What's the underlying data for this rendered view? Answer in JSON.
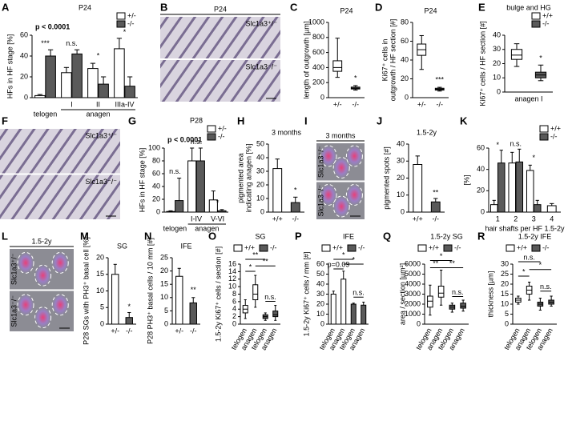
{
  "chart_data": [
    {
      "type": "bar",
      "label": "A",
      "title": "P24",
      "annotation": "p < 0.0001",
      "ylabel": [
        "HFs in HF stage [%]"
      ],
      "categories": [
        null,
        "I",
        "II",
        "IIIa-IV"
      ],
      "groups": [
        "telogen",
        "anagen"
      ],
      "series": [
        {
          "name": "+/-",
          "color": "#ffffff",
          "values": [
            2,
            24,
            28,
            47
          ],
          "errors": [
            1,
            5,
            5,
            10
          ]
        },
        {
          "name": "-/-",
          "color": "#5a5a5a",
          "values": [
            40,
            42,
            13,
            11
          ],
          "errors": [
            6,
            4,
            7,
            9
          ]
        }
      ],
      "ylim": [
        0,
        60
      ],
      "yticks": [
        0,
        20,
        40,
        60
      ],
      "legend": "top right",
      "significance": [
        "***",
        "n.s.",
        "*",
        "*"
      ]
    },
    {
      "type": "box",
      "label": "C",
      "title": "P24",
      "ylabel": [
        "length of outgrowth [µm]"
      ],
      "categories": [
        "+/-",
        "-/-"
      ],
      "series": [
        {
          "color": "#ffffff",
          "boxes": [
            {
              "min": 270,
              "q1": 350,
              "median": 400,
              "q3": 490,
              "max": 790
            },
            null
          ]
        },
        {
          "color": "#5a5a5a",
          "boxes": [
            null,
            {
              "min": 100,
              "q1": 115,
              "median": 125,
              "q3": 140,
              "max": 160
            }
          ]
        }
      ],
      "ylim": [
        0,
        1000
      ],
      "yticks": [
        0,
        200,
        400,
        600,
        800,
        1000
      ],
      "significance": [
        "*"
      ]
    },
    {
      "type": "box",
      "label": "D",
      "title": "P24",
      "ylabel": [
        "Ki67⁺ cells in",
        "outgrowth / HF section [#]"
      ],
      "categories": [
        "+/-",
        "-/-"
      ],
      "series": [
        {
          "color": "#ffffff",
          "boxes": [
            {
              "min": 30,
              "q1": 45,
              "median": 51,
              "q3": 57,
              "max": 66
            },
            null
          ]
        },
        {
          "color": "#5a5a5a",
          "boxes": [
            null,
            {
              "min": 7,
              "q1": 8,
              "median": 9,
              "q3": 10,
              "max": 11
            }
          ]
        }
      ],
      "ylim": [
        0,
        80
      ],
      "yticks": [
        0,
        20,
        40,
        60,
        80
      ],
      "significance": [
        "***"
      ]
    },
    {
      "type": "box",
      "label": "E",
      "title": "bulge and HG",
      "ylabel": [
        "Ki67⁺ cells / HF section [#]"
      ],
      "xlabel": "anagen I",
      "categories": [
        null,
        null
      ],
      "series": [
        {
          "name": "+/+",
          "color": "#ffffff",
          "boxes": [
            {
              "min": 18,
              "q1": 23,
              "median": 26,
              "q3": 30,
              "max": 34
            },
            null
          ]
        },
        {
          "name": "-/-",
          "color": "#5a5a5a",
          "boxes": [
            null,
            {
              "min": 8,
              "q1": 10,
              "median": 12,
              "q3": 14,
              "max": 19
            }
          ]
        }
      ],
      "ylim": [
        0,
        40
      ],
      "yticks": [
        0,
        10,
        20,
        30,
        40
      ],
      "legend": "top right",
      "significance": [
        "*"
      ]
    },
    {
      "type": "bar",
      "label": "G",
      "title": "P28",
      "annotation": "p < 0.0001",
      "ylabel": [
        "HFs in HF stage [%]"
      ],
      "categories": [
        null,
        "I-IV",
        "V-VI"
      ],
      "groups": [
        "telogen",
        "anagen"
      ],
      "series": [
        {
          "name": "+/-",
          "color": "#ffffff",
          "values": [
            1,
            80,
            19
          ],
          "errors": [
            1,
            20,
            14
          ]
        },
        {
          "name": "-/-",
          "color": "#5a5a5a",
          "values": [
            18,
            80,
            2
          ],
          "errors": [
            35,
            20,
            2
          ]
        }
      ],
      "ylim": [
        0,
        100
      ],
      "yticks": [
        0,
        20,
        40,
        60,
        80,
        100
      ],
      "legend": "top right",
      "significance": [
        "n.s.",
        "n.s.",
        "*"
      ]
    },
    {
      "type": "bar",
      "label": "H",
      "title": "3 months",
      "ylabel": [
        "pigmented area",
        "indicating anagen [%]"
      ],
      "categories": [
        "+/+",
        "-/-"
      ],
      "series": [
        {
          "color": "#ffffff",
          "values": [
            32,
            null
          ],
          "errors": [
            7,
            null
          ]
        },
        {
          "color": "#5a5a5a",
          "values": [
            null,
            7
          ],
          "errors": [
            null,
            4
          ]
        }
      ],
      "ylim": [
        0,
        50
      ],
      "yticks": [
        0,
        10,
        20,
        30,
        40,
        50
      ],
      "significance": [
        "*"
      ]
    },
    {
      "type": "bar",
      "label": "J",
      "title": "1.5-2y",
      "ylabel": [
        "pigmented spots [#]"
      ],
      "categories": [
        "+/+",
        "-/-"
      ],
      "series": [
        {
          "color": "#ffffff",
          "values": [
            28,
            null
          ],
          "errors": [
            5,
            null
          ]
        },
        {
          "color": "#5a5a5a",
          "values": [
            null,
            6
          ],
          "errors": [
            null,
            2
          ]
        }
      ],
      "ylim": [
        0,
        40
      ],
      "yticks": [
        0,
        10,
        20,
        30,
        40
      ],
      "significance": [
        "**"
      ]
    },
    {
      "type": "bar",
      "label": "K",
      "ylabel": [
        "[%]"
      ],
      "xlabel": "hair shafts per HF 1.5-2y",
      "categories": [
        "1",
        "2",
        "3",
        "4"
      ],
      "series": [
        {
          "name": "+/+",
          "color": "#ffffff",
          "values": [
            7,
            46,
            39,
            6
          ],
          "errors": [
            4,
            10,
            5,
            2
          ]
        },
        {
          "name": "-/-",
          "color": "#5a5a5a",
          "values": [
            46,
            47,
            7,
            null
          ],
          "errors": [
            12,
            12,
            4,
            null
          ]
        }
      ],
      "ylim": [
        0,
        60
      ],
      "yticks": [
        0,
        20,
        40,
        60
      ],
      "legend": "top right",
      "significance": [
        "*",
        "n.s.",
        "*"
      ]
    },
    {
      "type": "bar",
      "label": "M",
      "title": "SG",
      "ylabel": [
        "P28 SGs with PH3⁺ basal cell [%]"
      ],
      "categories": [
        "+/-",
        "-/-"
      ],
      "series": [
        {
          "color": "#ffffff",
          "values": [
            15,
            null
          ],
          "errors": [
            3,
            null
          ]
        },
        {
          "color": "#5a5a5a",
          "values": [
            null,
            2
          ],
          "errors": [
            null,
            1.5
          ]
        }
      ],
      "ylim": [
        0,
        20
      ],
      "yticks": [
        0,
        5,
        10,
        15,
        20
      ],
      "significance": [
        "*"
      ]
    },
    {
      "type": "bar",
      "label": "N",
      "title": "IFE",
      "ylabel": [
        "P28 PH3⁺ basal cells / 10 mm [#]"
      ],
      "categories": [
        "+/-",
        "-/-"
      ],
      "series": [
        {
          "color": "#ffffff",
          "values": [
            18,
            null
          ],
          "errors": [
            3,
            null
          ]
        },
        {
          "color": "#5a5a5a",
          "values": [
            null,
            8
          ],
          "errors": [
            null,
            2
          ]
        }
      ],
      "ylim": [
        0,
        25
      ],
      "yticks": [
        0,
        5,
        10,
        15,
        20,
        25
      ],
      "significance": [
        "**"
      ]
    },
    {
      "type": "box",
      "label": "O",
      "title": "SG",
      "ylabel": [
        "1.5-2y Ki67⁺ cells / section [#]"
      ],
      "categories": [
        "telogen",
        "anagen",
        "telogen",
        "anagen"
      ],
      "series": [
        {
          "name": "+/+",
          "color": "#ffffff",
          "boxes": [
            {
              "min": 1.5,
              "q1": 3,
              "median": 4,
              "q3": 5,
              "max": 6.5
            },
            {
              "min": 4.5,
              "q1": 6.5,
              "median": 8,
              "q3": 10.5,
              "max": 13
            },
            null,
            null
          ]
        },
        {
          "name": "-/-",
          "color": "#5a5a5a",
          "boxes": [
            null,
            null,
            {
              "min": 1,
              "q1": 1.5,
              "median": 2,
              "q3": 2.5,
              "max": 3
            },
            {
              "min": 1,
              "q1": 2,
              "median": 2.5,
              "q3": 3.5,
              "max": 5
            }
          ]
        }
      ],
      "ylim": [
        0,
        16
      ],
      "yticks": [
        0,
        2,
        4,
        6,
        8,
        10,
        12,
        14,
        16
      ],
      "legend": "top",
      "significance": [
        "**",
        "*",
        "**",
        "n.s."
      ]
    },
    {
      "type": "bar",
      "label": "P",
      "title": "IFE",
      "ylabel": [
        "1.5-2y Ki67⁺ cells / mm [#]"
      ],
      "categories": [
        "telogen",
        "anagen",
        "telogen",
        "anagen"
      ],
      "series": [
        {
          "name": "+/+",
          "color": "#ffffff",
          "values": [
            30,
            45,
            null,
            null
          ],
          "errors": [
            3,
            8,
            null,
            null
          ]
        },
        {
          "name": "-/-",
          "color": "#5a5a5a",
          "values": [
            null,
            null,
            20,
            19
          ],
          "errors": [
            null,
            null,
            1,
            3
          ]
        }
      ],
      "ylim": [
        0,
        60
      ],
      "yticks": [
        0,
        10,
        20,
        30,
        40,
        50,
        60
      ],
      "legend": "top",
      "significance": [
        "p=0.09",
        "*",
        "*",
        "n.s."
      ]
    },
    {
      "type": "box",
      "label": "Q",
      "title": "1.5-2y SG",
      "ylabel": [
        "area / section [µm²]"
      ],
      "categories": [
        "telogen",
        "anagen",
        "telogen",
        "anagen"
      ],
      "series": [
        {
          "name": "+/+",
          "color": "#ffffff",
          "boxes": [
            {
              "min": 900,
              "q1": 1700,
              "median": 2300,
              "q3": 2800,
              "max": 3900
            },
            {
              "min": 1900,
              "q1": 2700,
              "median": 3100,
              "q3": 3800,
              "max": 5400
            },
            null,
            null
          ]
        },
        {
          "name": "-/-",
          "color": "#5a5a5a",
          "boxes": [
            null,
            null,
            {
              "min": 1200,
              "q1": 1500,
              "median": 1700,
              "q3": 1900,
              "max": 2100
            },
            {
              "min": 1300,
              "q1": 1600,
              "median": 1800,
              "q3": 2100,
              "max": 2400
            }
          ]
        }
      ],
      "ylim": [
        0,
        6000
      ],
      "yticks": [
        0,
        1000,
        2000,
        3000,
        4000,
        5000,
        6000
      ],
      "legend": "top",
      "significance": [
        "*",
        "**",
        "**",
        "n.s."
      ]
    },
    {
      "type": "box",
      "label": "R",
      "title": "1.5-2y IFE",
      "ylabel": [
        "thickness [µm]"
      ],
      "categories": [
        "telogen",
        "anagen",
        "telogen",
        "anagen"
      ],
      "series": [
        {
          "name": "+/+",
          "color": "#ffffff",
          "boxes": [
            {
              "min": 10,
              "q1": 11,
              "median": 12,
              "q3": 13,
              "max": 14
            },
            {
              "min": 12,
              "q1": 15,
              "median": 17,
              "q3": 19,
              "max": 21
            },
            null,
            null
          ]
        },
        {
          "name": "-/-",
          "color": "#5a5a5a",
          "boxes": [
            null,
            null,
            {
              "min": 7,
              "q1": 9,
              "median": 10,
              "q3": 11,
              "max": 13
            },
            {
              "min": 9,
              "q1": 10,
              "median": 11,
              "q3": 12,
              "max": 14
            }
          ]
        }
      ],
      "ylim": [
        0,
        30
      ],
      "yticks": [
        0,
        5,
        10,
        15,
        20,
        25,
        30
      ],
      "legend": "top",
      "significance": [
        "n.s.",
        "*",
        "*",
        "n.s."
      ]
    }
  ],
  "images": [
    {
      "label": "B",
      "title": "P24",
      "captions": [
        "Slc1a3⁺/⁻",
        "Slc1a3⁻/⁻"
      ]
    },
    {
      "label": "F",
      "captions": [
        "Slc1a3⁺/⁻",
        "Slc1a3⁻/⁻"
      ]
    },
    {
      "label": "I",
      "title": "3 months",
      "captions": [
        "Slc1a3⁺/⁻",
        "Slc1a3⁻/⁻"
      ]
    },
    {
      "label": "L",
      "title": "1.5-2y",
      "captions": [
        "Slc1a3⁺/⁻",
        "Slc1a3⁻/⁻"
      ]
    }
  ]
}
